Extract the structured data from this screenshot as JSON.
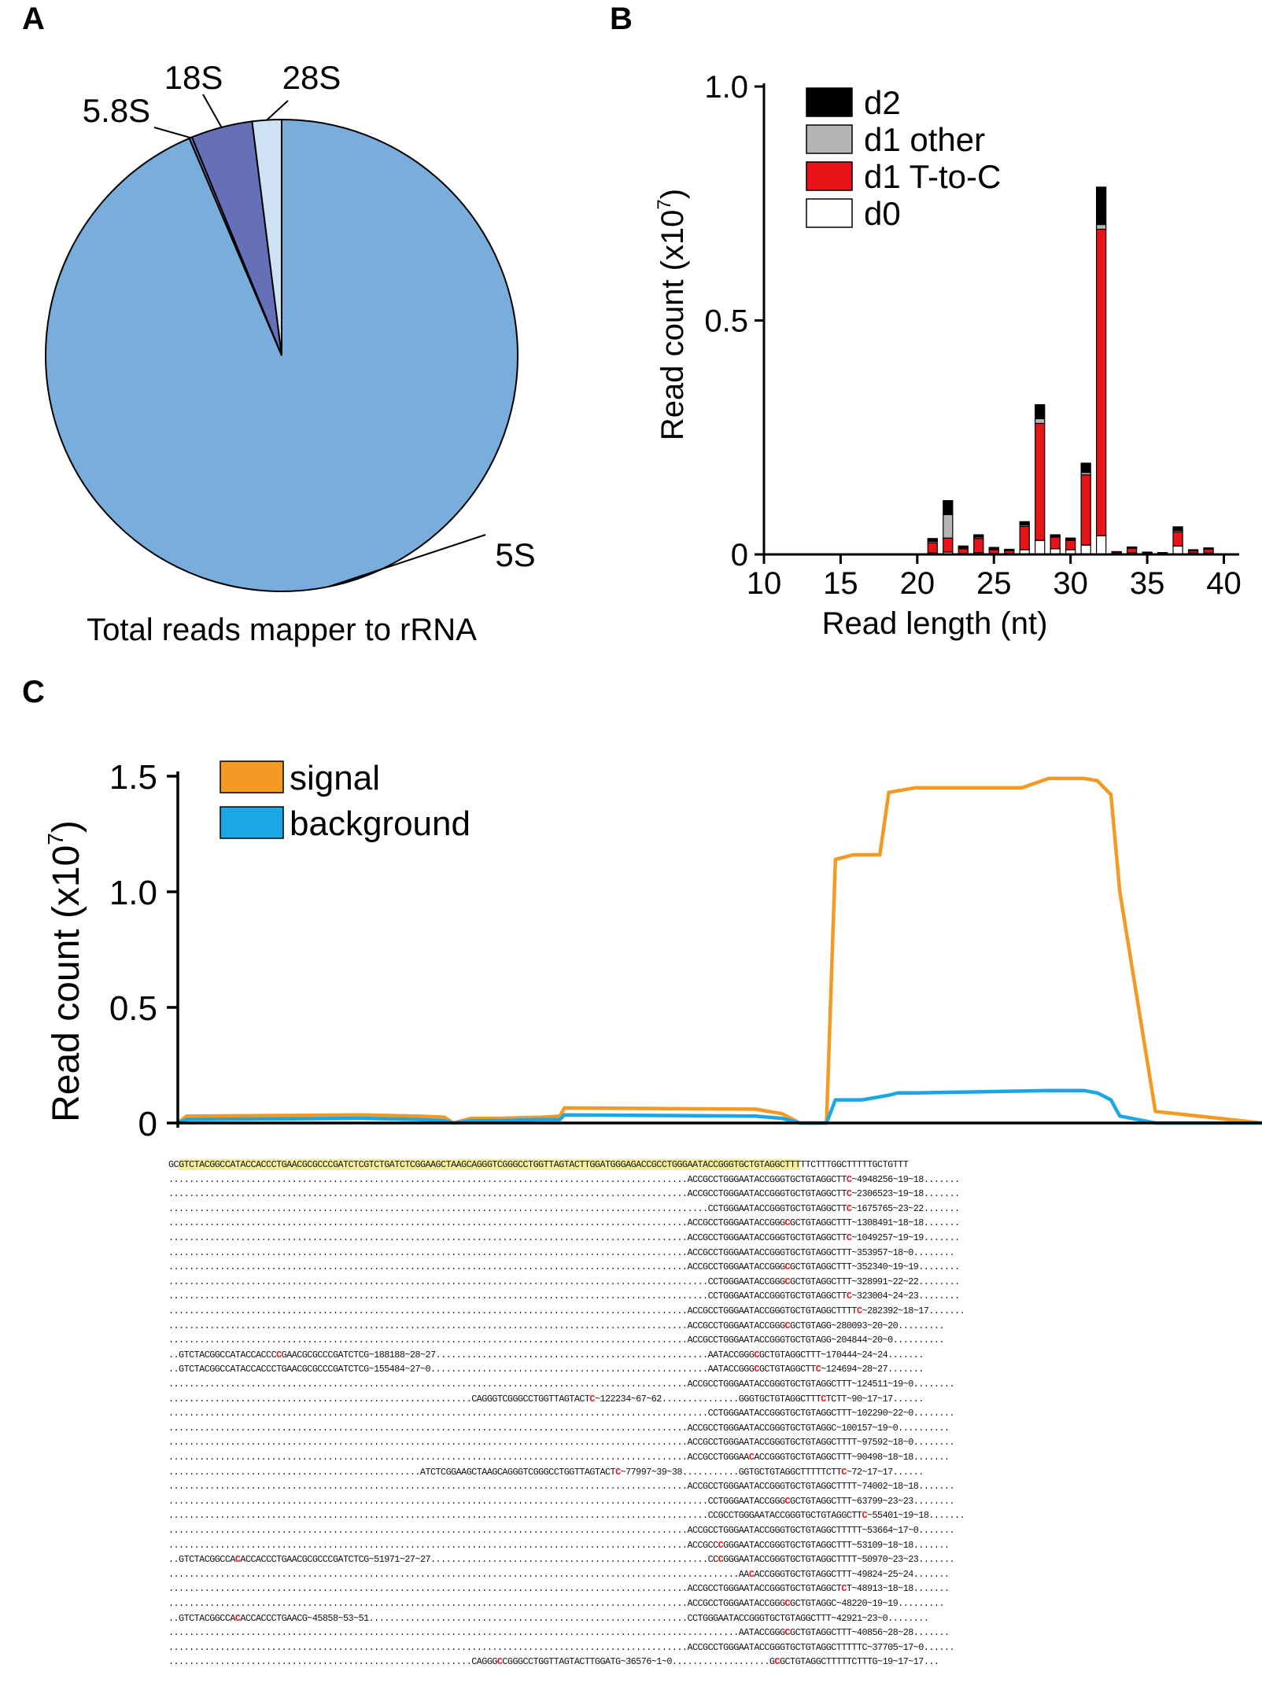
{
  "figure": {
    "panel_labels": [
      "A",
      "B",
      "C"
    ]
  },
  "chart_data": [
    {
      "type": "pie",
      "panel": "A",
      "title": "Total reads mapper to rRNA",
      "slices": [
        {
          "label": "5S",
          "value": 93.6,
          "color": "#79aedc"
        },
        {
          "label": "5.8S",
          "value": 0.2,
          "color": "#6570b8"
        },
        {
          "label": "18S",
          "value": 4.2,
          "color": "#6570b8"
        },
        {
          "label": "28S",
          "value": 2.0,
          "color": "#cfe2f3"
        }
      ]
    },
    {
      "type": "bar",
      "stacked": true,
      "panel": "B",
      "xlabel": "Read length (nt)",
      "ylabel": "Read count (x10",
      "ylabel_exp": "7",
      "ylabel_close": ")",
      "xlim": [
        10,
        41
      ],
      "ylim": [
        0,
        1.0
      ],
      "xticks": [
        "10",
        "15",
        "20",
        "25",
        "30",
        "35",
        "40"
      ],
      "yticks": [
        "0",
        "0.5",
        "1.0"
      ],
      "legend": [
        "d2",
        "d1 other",
        "d1 T-to-C",
        "d0"
      ],
      "legend_position": "top-left",
      "colors": {
        "d0": "#ffffff",
        "d1 T-to-C": "#e8141a",
        "d1 other": "#b5b5b5",
        "d2": "#000000"
      },
      "x": [
        20,
        21,
        22,
        23,
        24,
        25,
        26,
        27,
        28,
        29,
        30,
        31,
        32,
        33,
        34,
        35,
        36,
        37,
        38,
        39
      ],
      "series": [
        {
          "name": "d0",
          "values": [
            0,
            0.003,
            0.005,
            0.002,
            0.004,
            0.002,
            0.002,
            0.01,
            0.03,
            0.012,
            0.01,
            0.02,
            0.04,
            0.002,
            0.003,
            0.002,
            0.002,
            0.018,
            0.003,
            0.003
          ]
        },
        {
          "name": "d1 T-to-C",
          "values": [
            0,
            0.022,
            0.03,
            0.01,
            0.03,
            0.008,
            0.006,
            0.05,
            0.25,
            0.025,
            0.02,
            0.15,
            0.655,
            0.003,
            0.01,
            0.002,
            0.002,
            0.03,
            0.005,
            0.008
          ]
        },
        {
          "name": "d1 other",
          "values": [
            0,
            0.003,
            0.05,
            0.002,
            0.003,
            0.002,
            0.001,
            0.003,
            0.01,
            0.002,
            0.002,
            0.005,
            0.01,
            0,
            0.001,
            0,
            0,
            0.003,
            0,
            0.001
          ]
        },
        {
          "name": "d2",
          "values": [
            0,
            0.006,
            0.03,
            0.004,
            0.005,
            0.003,
            0.002,
            0.007,
            0.03,
            0.003,
            0.003,
            0.02,
            0.08,
            0.001,
            0.002,
            0.001,
            0,
            0.008,
            0.002,
            0.002
          ]
        }
      ]
    },
    {
      "type": "line",
      "panel": "C",
      "ylabel": "Read count (x10",
      "ylabel_exp": "7",
      "ylabel_close": ")",
      "ylim": [
        0,
        1.5
      ],
      "yticks": [
        "0",
        "0.5",
        "1.0",
        "1.5"
      ],
      "legend": [
        "signal",
        "background"
      ],
      "legend_position": "top-left",
      "xlim": [
        0,
        122
      ],
      "series": [
        {
          "name": "signal",
          "color": "#f39a24",
          "x": [
            0,
            1,
            20,
            21,
            27,
            30,
            31,
            33,
            36,
            41,
            43,
            43.5,
            65,
            68,
            69,
            70,
            73,
            74,
            75,
            76,
            79,
            80,
            83,
            95,
            98,
            100,
            101,
            102,
            103.5,
            105,
            106,
            110,
            122
          ],
          "y": [
            0,
            0.03,
            0.035,
            0.035,
            0.03,
            0.025,
            0,
            0.02,
            0.02,
            0.025,
            0.03,
            0.065,
            0.06,
            0.04,
            0.02,
            0,
            0,
            1.14,
            1.15,
            1.16,
            1.16,
            1.43,
            1.45,
            1.45,
            1.49,
            1.49,
            1.49,
            1.49,
            1.48,
            1.42,
            1.0,
            0.05,
            0
          ]
        },
        {
          "name": "background",
          "color": "#1aa7e6",
          "x": [
            0,
            1,
            20,
            21,
            27,
            30,
            31,
            33,
            36,
            41,
            43,
            43.5,
            65,
            68,
            69,
            70,
            73,
            74,
            75,
            77,
            80,
            81,
            83,
            98,
            100,
            102,
            103.5,
            105,
            106,
            110,
            122
          ],
          "y": [
            0,
            0.015,
            0.02,
            0.02,
            0.015,
            0.01,
            0,
            0.01,
            0.01,
            0.015,
            0.015,
            0.035,
            0.03,
            0.02,
            0.01,
            0,
            0,
            0.1,
            0.1,
            0.1,
            0.12,
            0.13,
            0.13,
            0.14,
            0.14,
            0.14,
            0.13,
            0.1,
            0.03,
            0,
            0
          ]
        }
      ]
    }
  ],
  "alignment": {
    "reference_lines": [
      {
        "segments": [
          {
            "text": "GC",
            "style": "ref"
          },
          {
            "text": "GTCTACGGCCATACCACCCTGAACGCGCCCGATCTCGTCTGATCTCGGAAGCTAAGCAGGGTCGGGCCTGGTTAGTACTTGGATGGGAGACCGCCTGGGAATACCGGGTGCTGTAGGCTTT",
            "style": "hl"
          },
          {
            "text": "TTCTTTGGCTTTTTGCTGTTT",
            "style": "ref"
          }
        ]
      }
    ],
    "reads": [
      {
        "segments": [
          {
            "text": ".....................................................................................................ACCGCCTGGGAATACCGGGTGCTGTAGGCTT"
          },
          {
            "text": "C",
            "mm": true
          },
          {
            "text": "~4948256~19~18......."
          }
        ]
      },
      {
        "segments": [
          {
            "text": ".....................................................................................................ACCGCCTGGGAATACCGGGTGCTGTAGGCTT"
          },
          {
            "text": "C",
            "mm": true
          },
          {
            "text": "~2306523~19~18......."
          }
        ]
      },
      {
        "segments": [
          {
            "text": ".........................................................................................................CCTGGGAATACCGGGTGCTGTAGGCTT"
          },
          {
            "text": "C",
            "mm": true
          },
          {
            "text": "~1675765~23~22......."
          }
        ]
      },
      {
        "segments": [
          {
            "text": ".....................................................................................................ACCGCCTGGGAATACCGGG"
          },
          {
            "text": "C",
            "mm": true
          },
          {
            "text": "GCTGTAGGCTTT~1308491~18~18......."
          }
        ]
      },
      {
        "segments": [
          {
            "text": ".....................................................................................................ACCGCCTGGGAATACCGGGTGCTGTAGGCTT"
          },
          {
            "text": "C",
            "mm": true
          },
          {
            "text": "~1049257~19~19......."
          }
        ]
      },
      {
        "segments": [
          {
            "text": ".....................................................................................................ACCGCCTGGGAATACCGGGTGCTGTAGGCTTT~353957~18~0........"
          }
        ]
      },
      {
        "segments": [
          {
            "text": ".....................................................................................................ACCGCCTGGGAATACCGGG"
          },
          {
            "text": "C",
            "mm": true
          },
          {
            "text": "GCTGTAGGCTTT~352340~19~19........"
          }
        ]
      },
      {
        "segments": [
          {
            "text": ".........................................................................................................CCTGGGAATACCGGG"
          },
          {
            "text": "C",
            "mm": true
          },
          {
            "text": "GCTGTAGGCTTT~328991~22~22........"
          }
        ]
      },
      {
        "segments": [
          {
            "text": ".........................................................................................................CCTGGGAATACCGGGTGCTGTAGGCTT"
          },
          {
            "text": "C",
            "mm": true
          },
          {
            "text": "~323004~24~23........"
          }
        ]
      },
      {
        "segments": [
          {
            "text": ".....................................................................................................ACCGCCTGGGAATACCGGGTGCTGTAGGCTTTT"
          },
          {
            "text": "C",
            "mm": true
          },
          {
            "text": "~282392~18~17......."
          }
        ]
      },
      {
        "segments": [
          {
            "text": ".....................................................................................................ACCGCCTGGGAATACCGGG"
          },
          {
            "text": "C",
            "mm": true
          },
          {
            "text": "GCTGTAGG~280093~20~20........."
          }
        ]
      },
      {
        "segments": [
          {
            "text": ".....................................................................................................ACCGCCTGGGAATACCGGGTGCTGTAGG~204844~20~0.........."
          }
        ]
      },
      {
        "segments": [
          {
            "text": "..GTCTACGGCCATACCACCC"
          },
          {
            "text": "C",
            "mm": true
          },
          {
            "text": "GAACGCGCCCGATCTCG~188188~28~27.....................................................AATACCGGG"
          },
          {
            "text": "C",
            "mm": true
          },
          {
            "text": "GCTGTAGGCTTT~170444~24~24......."
          }
        ]
      },
      {
        "segments": [
          {
            "text": "..GTCTACGGCCATACCACCCTGAACGCGCCCGATCTCG~155484~27~0......................................................AATACCGGG"
          },
          {
            "text": "C",
            "mm": true
          },
          {
            "text": "GCTGTAGGCTT"
          },
          {
            "text": "C",
            "mm": true
          },
          {
            "text": "~124694~28~27......."
          }
        ]
      },
      {
        "segments": [
          {
            "text": ".....................................................................................................ACCGCCTGGGAATACCGGGTGCTGTAGGCTTT~124511~19~0........"
          }
        ]
      },
      {
        "segments": [
          {
            "text": "...........................................................CAGGGTCGGGCCTGGTTAGTACT"
          },
          {
            "text": "C",
            "mm": true
          },
          {
            "text": "~122234~67~62...............GGGTGCTGTAGGCTTT"
          },
          {
            "text": "C",
            "mm": true
          },
          {
            "text": "TCTT~90~17~17......"
          }
        ]
      },
      {
        "segments": [
          {
            "text": ".........................................................................................................CCTGGGAATACCGGGTGCTGTAGGCTTT~102290~22~0........"
          }
        ]
      },
      {
        "segments": [
          {
            "text": ".....................................................................................................ACCGCCTGGGAATACCGGGTGCTGTAGGC~100157~19~0.........."
          }
        ]
      },
      {
        "segments": [
          {
            "text": ".....................................................................................................ACCGCCTGGGAATACCGGGTGCTGTAGGCTTTT~97592~18~0........"
          }
        ]
      },
      {
        "segments": [
          {
            "text": ".....................................................................................................ACCGCCTGGGAA"
          },
          {
            "text": "C",
            "mm": true
          },
          {
            "text": "ACCGGGTGCTGTAGGCTTT~90498~18~18......."
          }
        ]
      },
      {
        "segments": [
          {
            "text": ".................................................ATCTCGGAAGCTAAGCAGGGTCGGGCCTGGTTAGTACT"
          },
          {
            "text": "C",
            "mm": true
          },
          {
            "text": "~77997~39~38...........GGTGCTGTAGGCTTTTTCTT"
          },
          {
            "text": "C",
            "mm": true
          },
          {
            "text": "~72~17~17......"
          }
        ]
      },
      {
        "segments": [
          {
            "text": ".....................................................................................................ACCGCCTGGGAATACCGGGTGCTGTAGGCTTTT~74002~18~18......."
          }
        ]
      },
      {
        "segments": [
          {
            "text": ".........................................................................................................CCTGGGAATACCGGG"
          },
          {
            "text": "C",
            "mm": true
          },
          {
            "text": "GCTGTAGGCTTT~63799~23~23........"
          }
        ]
      },
      {
        "segments": [
          {
            "text": ".........................................................................................................CCGCCTGGGAATACCGGGTGCTGTAGGCTT"
          },
          {
            "text": "C",
            "mm": true
          },
          {
            "text": "~55401~19~18......."
          }
        ]
      },
      {
        "segments": [
          {
            "text": ".....................................................................................................ACCGCCTGGGAATACCGGGTGCTGTAGGCTTTTT~53664~17~0......."
          }
        ]
      },
      {
        "segments": [
          {
            "text": ".....................................................................................................ACCGCC"
          },
          {
            "text": "C",
            "mm": true
          },
          {
            "text": "GGGAATACCGGGTGCTGTAGGCTTT~53109~18~18......."
          }
        ]
      },
      {
        "segments": [
          {
            "text": "..GTCTACGGCCA"
          },
          {
            "text": "C",
            "mm": true
          },
          {
            "text": "ACCACCCTGAACGCGCCCGATCTCG~51971~27~27......................................................CC"
          },
          {
            "text": "C",
            "mm": true
          },
          {
            "text": "GGGAATACCGGGTGCTGTAGGCTTTT~50970~23~23......."
          }
        ]
      },
      {
        "segments": [
          {
            "text": "...............................................................................................................AA"
          },
          {
            "text": "C",
            "mm": true
          },
          {
            "text": "ACCGGGTGCTGTAGGCTTT~49824~25~24......."
          }
        ]
      },
      {
        "segments": [
          {
            "text": ".....................................................................................................ACCGCCTGGGAATACCGGGTGCTGTAGGCT"
          },
          {
            "text": "C",
            "mm": true
          },
          {
            "text": "T~48913~18~18......."
          }
        ]
      },
      {
        "segments": [
          {
            "text": ".....................................................................................................ACCGCCTGGGAATACCGGG"
          },
          {
            "text": "C",
            "mm": true
          },
          {
            "text": "GCTGTAGGC~48220~19~19........."
          }
        ]
      },
      {
        "segments": [
          {
            "text": "..GTCTACGGCCA"
          },
          {
            "text": "C",
            "mm": true
          },
          {
            "text": "ACCACCCTGAACG~45858~53~51..............................................................CCTGGGAATACCGGGTGCTGTAGGCTTT~42921~23~0........"
          }
        ]
      },
      {
        "segments": [
          {
            "text": "...............................................................................................................AATACCGGG"
          },
          {
            "text": "C",
            "mm": true
          },
          {
            "text": "GCTGTAGGCTTT~40856~28~28......."
          }
        ]
      },
      {
        "segments": [
          {
            "text": ".....................................................................................................ACCGCCTGGGAATACCGGGTGCTGTAGGCTTTTTC~37705~17~0......"
          }
        ]
      },
      {
        "segments": [
          {
            "text": "...........................................................CAGGG"
          },
          {
            "text": "C",
            "mm": true
          },
          {
            "text": "CGGGCCTGGTTAGTACTTGGATG~36576~1~0...................G"
          },
          {
            "text": "C",
            "mm": true
          },
          {
            "text": "GCTGTAGGCTTTTTCTTTG~19~17~17..."
          }
        ]
      }
    ]
  }
}
